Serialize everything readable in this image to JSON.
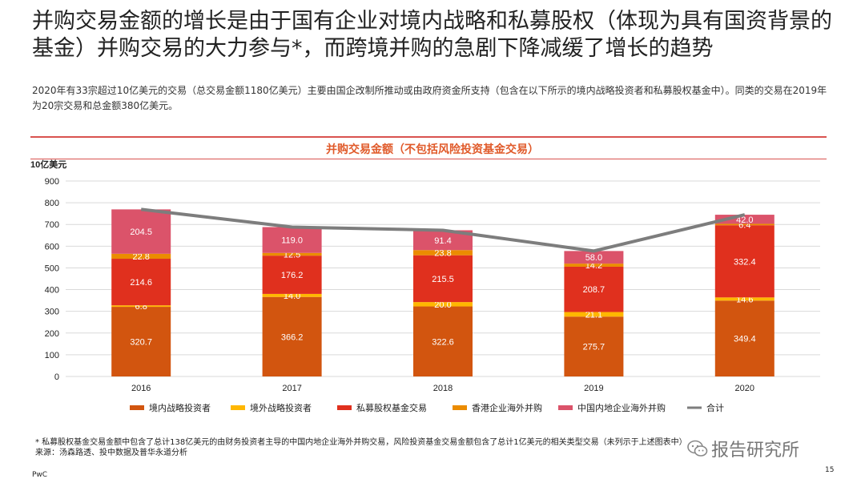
{
  "header": {
    "title": "并购交易金额的增长是由于国有企业对境内战略和私募股权（体现为具有国资背景的基金）并购交易的大力参与*，而跨境并购的急剧下降减缓了增长的趋势",
    "subtitle": "2020年有33宗超过10亿美元的交易（总交易金额1180亿美元）主要由国企改制所推动或由政府资金所支持（包含在以下所示的境内战略投资者和私募股权基金中）。同类的交易在2019年为20宗交易和总金额380亿美元。"
  },
  "colors": {
    "rule": "#d9534f",
    "chart_title": "#e05a2a"
  },
  "chart_data": {
    "type": "bar",
    "title": "并购交易金额（不包括风险投资基金交易）",
    "ylabel": "10亿美元",
    "ylim": [
      0,
      900
    ],
    "yticks": [
      0,
      100,
      200,
      300,
      400,
      500,
      600,
      700,
      800,
      900
    ],
    "categories": [
      "2016",
      "2017",
      "2018",
      "2019",
      "2020"
    ],
    "stacked": true,
    "series": [
      {
        "name": "境内战略投资者",
        "color": "#d2550f",
        "values": [
          320.7,
          366.2,
          322.6,
          275.7,
          349.4
        ],
        "labels": [
          "320.7",
          "366.2",
          "322.6",
          "275.7",
          "349.4"
        ]
      },
      {
        "name": "境外战略投资者",
        "color": "#ffb700",
        "values": [
          6.8,
          14.0,
          20.0,
          21.1,
          14.6
        ],
        "labels": [
          "6.8",
          "14.0",
          "20.0",
          "21.1",
          "14.6"
        ]
      },
      {
        "name": "私募股权基金交易",
        "color": "#e0301e",
        "values": [
          214.6,
          176.2,
          215.5,
          208.7,
          332.4
        ],
        "labels": [
          "214.6",
          "176.2",
          "215.5",
          "208.7",
          "332.4"
        ]
      },
      {
        "name": "香港企业海外并购",
        "color": "#eb8c00",
        "values": [
          22.8,
          12.5,
          23.8,
          14.2,
          6.4
        ],
        "labels": [
          "22.8",
          "12.5",
          "23.8",
          "14.2",
          "6.4"
        ]
      },
      {
        "name": "中国内地企业海外并购",
        "color": "#db536a",
        "values": [
          204.5,
          119.0,
          91.4,
          58.0,
          42.0
        ],
        "labels": [
          "204.5",
          "119.0",
          "91.4",
          "58.0",
          "42.0"
        ]
      }
    ],
    "total": {
      "name": "合计",
      "color": "#7d7d7d",
      "values": [
        769.4,
        687.9,
        673.3,
        577.7,
        744.8
      ]
    },
    "grid": true,
    "legend_position": "bottom"
  },
  "footer": {
    "note": "* 私募股权基金交易金额中包含了总计138亿美元的由财务投资者主导的中国内地企业海外并购交易，风险投资基金交易金额包含了总计1亿美元的相关类型交易（未列示于上述图表中）",
    "source": "来源：汤森路透、投中数据及普华永道分析",
    "brand": "PwC",
    "page": "15",
    "watermark": "报告研究所"
  }
}
